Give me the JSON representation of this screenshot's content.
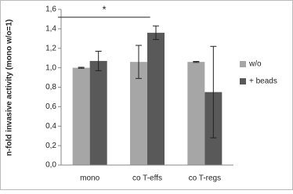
{
  "chart_data": {
    "type": "bar",
    "ylabel": "n-fold invasive activity (mono w/o=1)",
    "categories": [
      "mono",
      "co T-effs",
      "co T-regs"
    ],
    "series": [
      {
        "name": "w/o",
        "color": "#a6a6a6",
        "values": [
          1.0,
          1.06,
          1.06
        ],
        "errors": [
          0.005,
          0.17,
          0.005
        ]
      },
      {
        "name": "+ beads",
        "color": "#595959",
        "values": [
          1.07,
          1.36,
          0.75
        ],
        "errors": [
          0.1,
          0.07,
          0.47
        ]
      }
    ],
    "ylim": [
      0,
      1.6
    ],
    "yticks": [
      {
        "value": 0,
        "label": "0,0"
      },
      {
        "value": 0.2,
        "label": "0,2"
      },
      {
        "value": 0.4,
        "label": "0,4"
      },
      {
        "value": 0.6,
        "label": "0,6"
      },
      {
        "value": 0.8,
        "label": "0,8"
      },
      {
        "value": 1.0,
        "label": "1,0"
      },
      {
        "value": 1.2,
        "label": "1,2"
      },
      {
        "value": 1.4,
        "label": "1,4"
      },
      {
        "value": 1.6,
        "label": "1,6"
      }
    ],
    "annotation": "*",
    "legend": "right"
  }
}
